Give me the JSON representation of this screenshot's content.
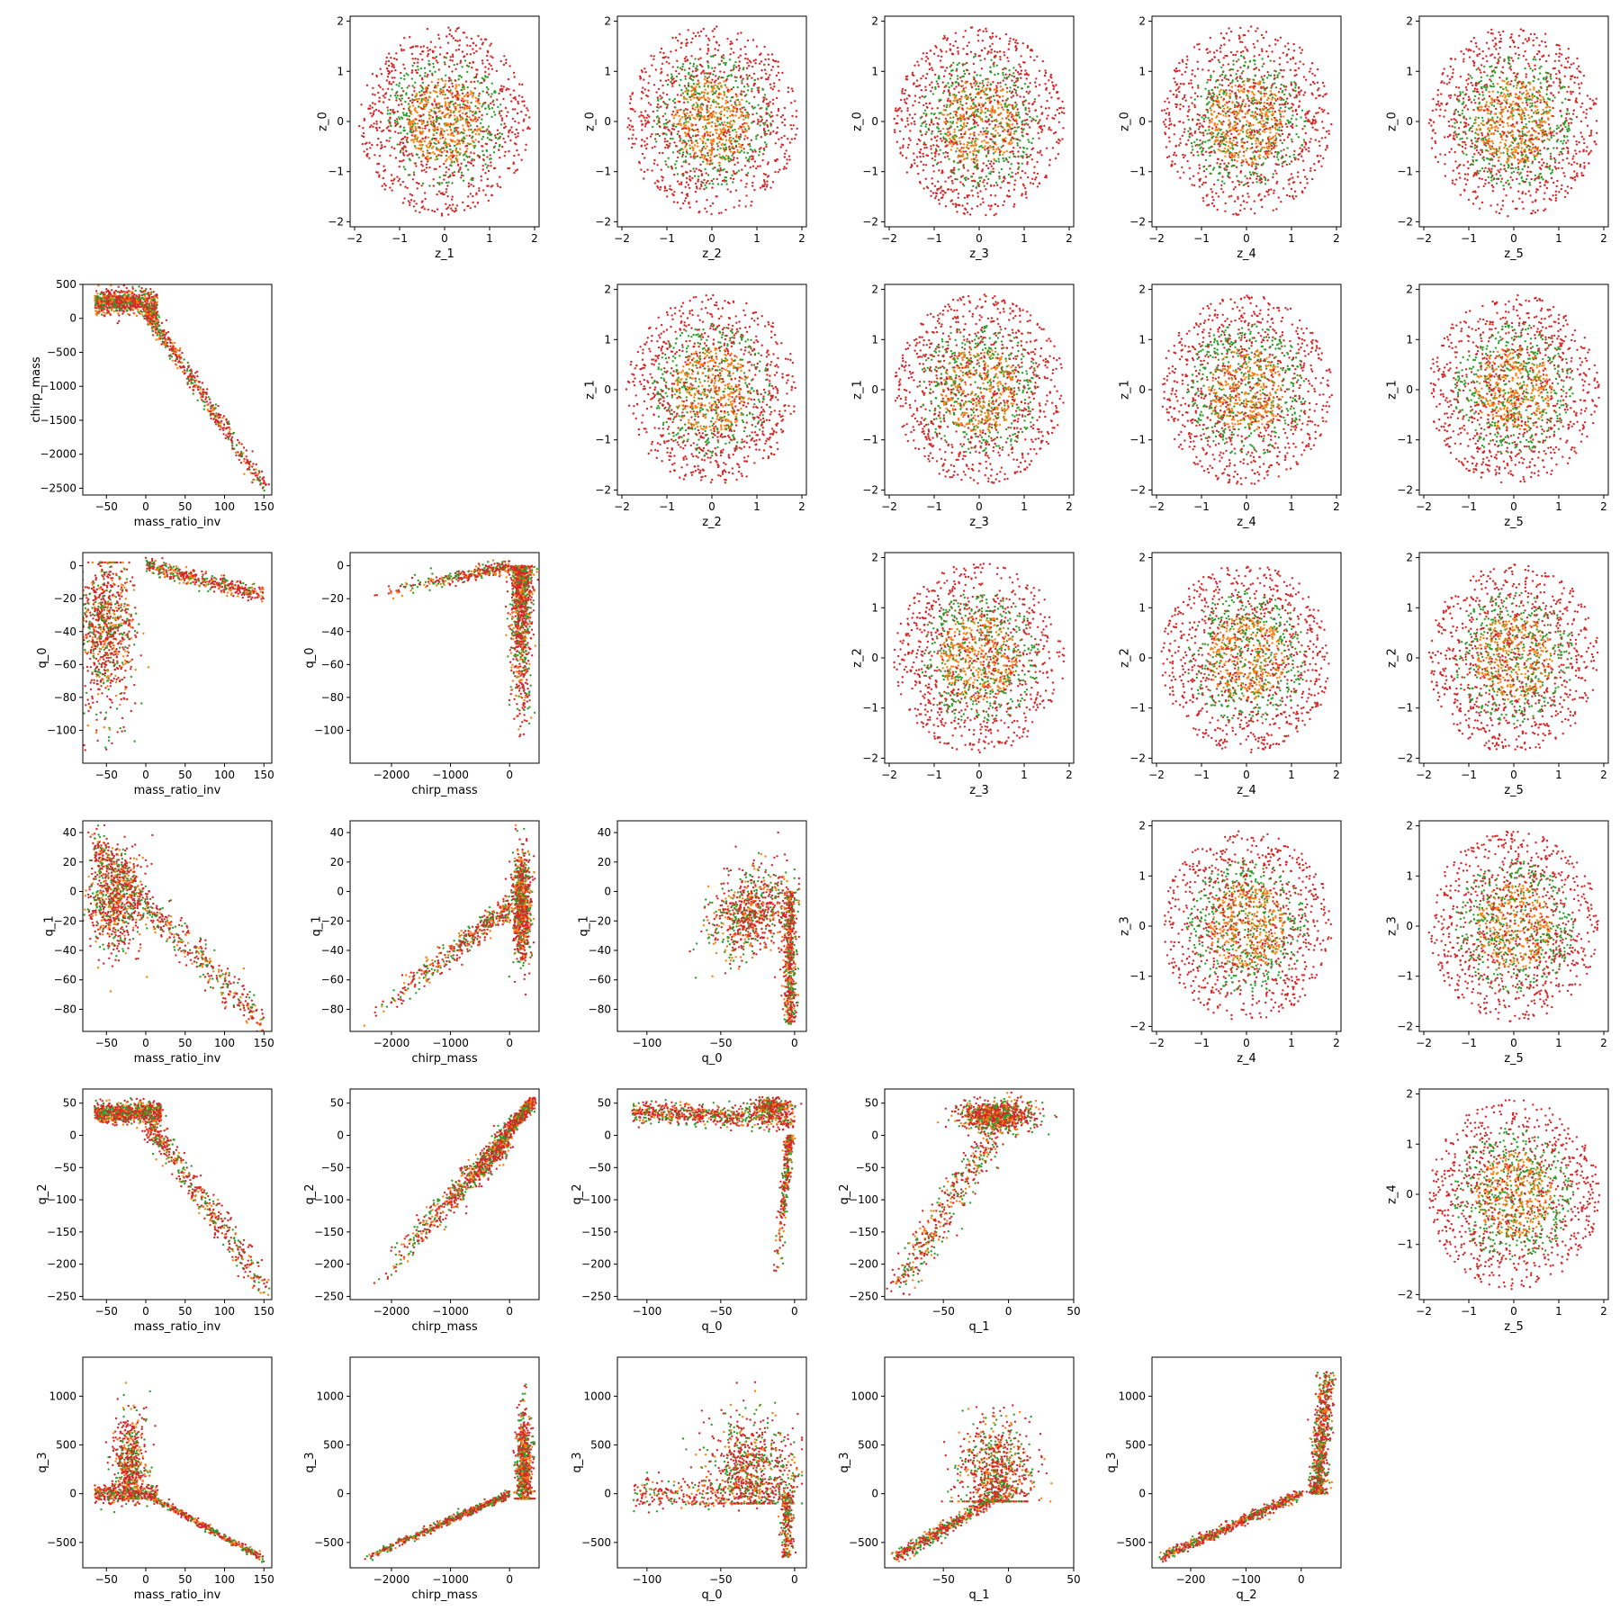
{
  "chart_data": {
    "type": "scatter",
    "layout": "upper-triangle z-z panels, lower-triangle physical-parameter panels",
    "grid": false,
    "legend": "none",
    "colors": {
      "point_primary": "#d62728",
      "point_secondary": "#2ca02c",
      "point_tertiary": "#ff7f0e",
      "frame": "#000000"
    },
    "panels": [
      {
        "row": 0,
        "col": 1,
        "xlabel": "z_1",
        "ylabel": "z_0",
        "xlim": [
          -2.1,
          2.1
        ],
        "ylim": [
          -2.1,
          2.1
        ],
        "xticks": [
          -2,
          -1,
          0,
          1,
          2
        ],
        "yticks": [
          -2,
          -1,
          0,
          1,
          2
        ],
        "pattern": "gauss"
      },
      {
        "row": 0,
        "col": 2,
        "xlabel": "z_2",
        "ylabel": "z_0",
        "xlim": [
          -2.1,
          2.1
        ],
        "ylim": [
          -2.1,
          2.1
        ],
        "xticks": [
          -2,
          -1,
          0,
          1,
          2
        ],
        "yticks": [
          -2,
          -1,
          0,
          1,
          2
        ],
        "pattern": "gauss"
      },
      {
        "row": 0,
        "col": 3,
        "xlabel": "z_3",
        "ylabel": "z_0",
        "xlim": [
          -2.1,
          2.1
        ],
        "ylim": [
          -2.1,
          2.1
        ],
        "xticks": [
          -2,
          -1,
          0,
          1,
          2
        ],
        "yticks": [
          -2,
          -1,
          0,
          1,
          2
        ],
        "pattern": "gauss"
      },
      {
        "row": 0,
        "col": 4,
        "xlabel": "z_4",
        "ylabel": "z_0",
        "xlim": [
          -2.1,
          2.1
        ],
        "ylim": [
          -2.1,
          2.1
        ],
        "xticks": [
          -2,
          -1,
          0,
          1,
          2
        ],
        "yticks": [
          -2,
          -1,
          0,
          1,
          2
        ],
        "pattern": "gauss"
      },
      {
        "row": 0,
        "col": 5,
        "xlabel": "z_5",
        "ylabel": "z_0",
        "xlim": [
          -2.1,
          2.1
        ],
        "ylim": [
          -2.1,
          2.1
        ],
        "xticks": [
          -2,
          -1,
          0,
          1,
          2
        ],
        "yticks": [
          -2,
          -1,
          0,
          1,
          2
        ],
        "pattern": "gauss"
      },
      {
        "row": 1,
        "col": 0,
        "xlabel": "mass_ratio_inv",
        "ylabel": "chirp_mass",
        "xlim": [
          -80,
          160
        ],
        "ylim": [
          -2600,
          500
        ],
        "xticks": [
          -50,
          0,
          50,
          100,
          150
        ],
        "yticks": [
          -2500,
          -2000,
          -1500,
          -1000,
          -500,
          0,
          500
        ],
        "pattern": "mri_chirp"
      },
      {
        "row": 1,
        "col": 2,
        "xlabel": "z_2",
        "ylabel": "z_1",
        "xlim": [
          -2.1,
          2.1
        ],
        "ylim": [
          -2.1,
          2.1
        ],
        "xticks": [
          -2,
          -1,
          0,
          1,
          2
        ],
        "yticks": [
          -2,
          -1,
          0,
          1,
          2
        ],
        "pattern": "gauss"
      },
      {
        "row": 1,
        "col": 3,
        "xlabel": "z_3",
        "ylabel": "z_1",
        "xlim": [
          -2.1,
          2.1
        ],
        "ylim": [
          -2.1,
          2.1
        ],
        "xticks": [
          -2,
          -1,
          0,
          1,
          2
        ],
        "yticks": [
          -2,
          -1,
          0,
          1,
          2
        ],
        "pattern": "gauss"
      },
      {
        "row": 1,
        "col": 4,
        "xlabel": "z_4",
        "ylabel": "z_1",
        "xlim": [
          -2.1,
          2.1
        ],
        "ylim": [
          -2.1,
          2.1
        ],
        "xticks": [
          -2,
          -1,
          0,
          1,
          2
        ],
        "yticks": [
          -2,
          -1,
          0,
          1,
          2
        ],
        "pattern": "gauss"
      },
      {
        "row": 1,
        "col": 5,
        "xlabel": "z_5",
        "ylabel": "z_1",
        "xlim": [
          -2.1,
          2.1
        ],
        "ylim": [
          -2.1,
          2.1
        ],
        "xticks": [
          -2,
          -1,
          0,
          1,
          2
        ],
        "yticks": [
          -2,
          -1,
          0,
          1,
          2
        ],
        "pattern": "gauss"
      },
      {
        "row": 2,
        "col": 0,
        "xlabel": "mass_ratio_inv",
        "ylabel": "q_0",
        "xlim": [
          -80,
          160
        ],
        "ylim": [
          -120,
          8
        ],
        "xticks": [
          -50,
          0,
          50,
          100,
          150
        ],
        "yticks": [
          -100,
          -80,
          -60,
          -40,
          -20,
          0
        ],
        "pattern": "mri_q0"
      },
      {
        "row": 2,
        "col": 1,
        "xlabel": "chirp_mass",
        "ylabel": "q_0",
        "xlim": [
          -2700,
          500
        ],
        "ylim": [
          -120,
          8
        ],
        "xticks": [
          -2000,
          -1000,
          0
        ],
        "yticks": [
          -100,
          -80,
          -60,
          -40,
          -20,
          0
        ],
        "pattern": "chirp_q0"
      },
      {
        "row": 2,
        "col": 3,
        "xlabel": "z_3",
        "ylabel": "z_2",
        "xlim": [
          -2.1,
          2.1
        ],
        "ylim": [
          -2.1,
          2.1
        ],
        "xticks": [
          -2,
          -1,
          0,
          1,
          2
        ],
        "yticks": [
          -2,
          -1,
          0,
          1,
          2
        ],
        "pattern": "gauss"
      },
      {
        "row": 2,
        "col": 4,
        "xlabel": "z_4",
        "ylabel": "z_2",
        "xlim": [
          -2.1,
          2.1
        ],
        "ylim": [
          -2.1,
          2.1
        ],
        "xticks": [
          -2,
          -1,
          0,
          1,
          2
        ],
        "yticks": [
          -2,
          -1,
          0,
          1,
          2
        ],
        "pattern": "gauss"
      },
      {
        "row": 2,
        "col": 5,
        "xlabel": "z_5",
        "ylabel": "z_2",
        "xlim": [
          -2.1,
          2.1
        ],
        "ylim": [
          -2.1,
          2.1
        ],
        "xticks": [
          -2,
          -1,
          0,
          1,
          2
        ],
        "yticks": [
          -2,
          -1,
          0,
          1,
          2
        ],
        "pattern": "gauss"
      },
      {
        "row": 3,
        "col": 0,
        "xlabel": "mass_ratio_inv",
        "ylabel": "q_1",
        "xlim": [
          -80,
          160
        ],
        "ylim": [
          -95,
          48
        ],
        "xticks": [
          -50,
          0,
          50,
          100,
          150
        ],
        "yticks": [
          -80,
          -60,
          -40,
          -20,
          0,
          20,
          40
        ],
        "pattern": "mri_q1"
      },
      {
        "row": 3,
        "col": 1,
        "xlabel": "chirp_mass",
        "ylabel": "q_1",
        "xlim": [
          -2700,
          500
        ],
        "ylim": [
          -95,
          48
        ],
        "xticks": [
          -2000,
          -1000,
          0
        ],
        "yticks": [
          -80,
          -60,
          -40,
          -20,
          0,
          20,
          40
        ],
        "pattern": "chirp_q1"
      },
      {
        "row": 3,
        "col": 2,
        "xlabel": "q_0",
        "ylabel": "q_1",
        "xlim": [
          -120,
          8
        ],
        "ylim": [
          -95,
          48
        ],
        "xticks": [
          -100,
          -50,
          0
        ],
        "yticks": [
          -80,
          -60,
          -40,
          -20,
          0,
          20,
          40
        ],
        "pattern": "q0_q1"
      },
      {
        "row": 3,
        "col": 4,
        "xlabel": "z_4",
        "ylabel": "z_3",
        "xlim": [
          -2.1,
          2.1
        ],
        "ylim": [
          -2.1,
          2.1
        ],
        "xticks": [
          -2,
          -1,
          0,
          1,
          2
        ],
        "yticks": [
          -2,
          -1,
          0,
          1,
          2
        ],
        "pattern": "gauss"
      },
      {
        "row": 3,
        "col": 5,
        "xlabel": "z_5",
        "ylabel": "z_3",
        "xlim": [
          -2.1,
          2.1
        ],
        "ylim": [
          -2.1,
          2.1
        ],
        "xticks": [
          -2,
          -1,
          0,
          1,
          2
        ],
        "yticks": [
          -2,
          -1,
          0,
          1,
          2
        ],
        "pattern": "gauss"
      },
      {
        "row": 4,
        "col": 0,
        "xlabel": "mass_ratio_inv",
        "ylabel": "q_2",
        "xlim": [
          -80,
          160
        ],
        "ylim": [
          -255,
          72
        ],
        "xticks": [
          -50,
          0,
          50,
          100,
          150
        ],
        "yticks": [
          -250,
          -200,
          -150,
          -100,
          -50,
          0,
          50
        ],
        "pattern": "mri_q2"
      },
      {
        "row": 4,
        "col": 1,
        "xlabel": "chirp_mass",
        "ylabel": "q_2",
        "xlim": [
          -2700,
          500
        ],
        "ylim": [
          -255,
          72
        ],
        "xticks": [
          -2000,
          -1000,
          0
        ],
        "yticks": [
          -250,
          -200,
          -150,
          -100,
          -50,
          0,
          50
        ],
        "pattern": "chirp_q2"
      },
      {
        "row": 4,
        "col": 2,
        "xlabel": "q_0",
        "ylabel": "q_2",
        "xlim": [
          -120,
          8
        ],
        "ylim": [
          -255,
          72
        ],
        "xticks": [
          -100,
          -50,
          0
        ],
        "yticks": [
          -250,
          -200,
          -150,
          -100,
          -50,
          0,
          50
        ],
        "pattern": "q0_q2"
      },
      {
        "row": 4,
        "col": 3,
        "xlabel": "q_1",
        "ylabel": "q_2",
        "xlim": [
          -95,
          50
        ],
        "ylim": [
          -255,
          72
        ],
        "xticks": [
          -50,
          0,
          50
        ],
        "yticks": [
          -250,
          -200,
          -150,
          -100,
          -50,
          0,
          50
        ],
        "pattern": "q1_q2"
      },
      {
        "row": 4,
        "col": 5,
        "xlabel": "z_5",
        "ylabel": "z_4",
        "xlim": [
          -2.1,
          2.1
        ],
        "ylim": [
          -2.1,
          2.1
        ],
        "xticks": [
          -2,
          -1,
          0,
          1,
          2
        ],
        "yticks": [
          -2,
          -1,
          0,
          1,
          2
        ],
        "pattern": "gauss"
      },
      {
        "row": 5,
        "col": 0,
        "xlabel": "mass_ratio_inv",
        "ylabel": "q_3",
        "xlim": [
          -80,
          160
        ],
        "ylim": [
          -760,
          1400
        ],
        "xticks": [
          -50,
          0,
          50,
          100,
          150
        ],
        "yticks": [
          -500,
          0,
          500,
          1000
        ],
        "pattern": "mri_q3"
      },
      {
        "row": 5,
        "col": 1,
        "xlabel": "chirp_mass",
        "ylabel": "q_3",
        "xlim": [
          -2700,
          500
        ],
        "ylim": [
          -760,
          1400
        ],
        "xticks": [
          -2000,
          -1000,
          0
        ],
        "yticks": [
          -500,
          0,
          500,
          1000
        ],
        "pattern": "chirp_q3"
      },
      {
        "row": 5,
        "col": 2,
        "xlabel": "q_0",
        "ylabel": "q_3",
        "xlim": [
          -120,
          8
        ],
        "ylim": [
          -760,
          1400
        ],
        "xticks": [
          -100,
          -50,
          0
        ],
        "yticks": [
          -500,
          0,
          500,
          1000
        ],
        "pattern": "q0_q3"
      },
      {
        "row": 5,
        "col": 3,
        "xlabel": "q_1",
        "ylabel": "q_3",
        "xlim": [
          -95,
          50
        ],
        "ylim": [
          -760,
          1400
        ],
        "xticks": [
          -50,
          0,
          50
        ],
        "yticks": [
          -500,
          0,
          500,
          1000
        ],
        "pattern": "q1_q3"
      },
      {
        "row": 5,
        "col": 4,
        "xlabel": "q_2",
        "ylabel": "q_3",
        "xlim": [
          -270,
          72
        ],
        "ylim": [
          -760,
          1400
        ],
        "xticks": [
          -200,
          -100,
          0
        ],
        "yticks": [
          -500,
          0,
          500,
          1000
        ],
        "pattern": "q2_q3"
      }
    ]
  }
}
